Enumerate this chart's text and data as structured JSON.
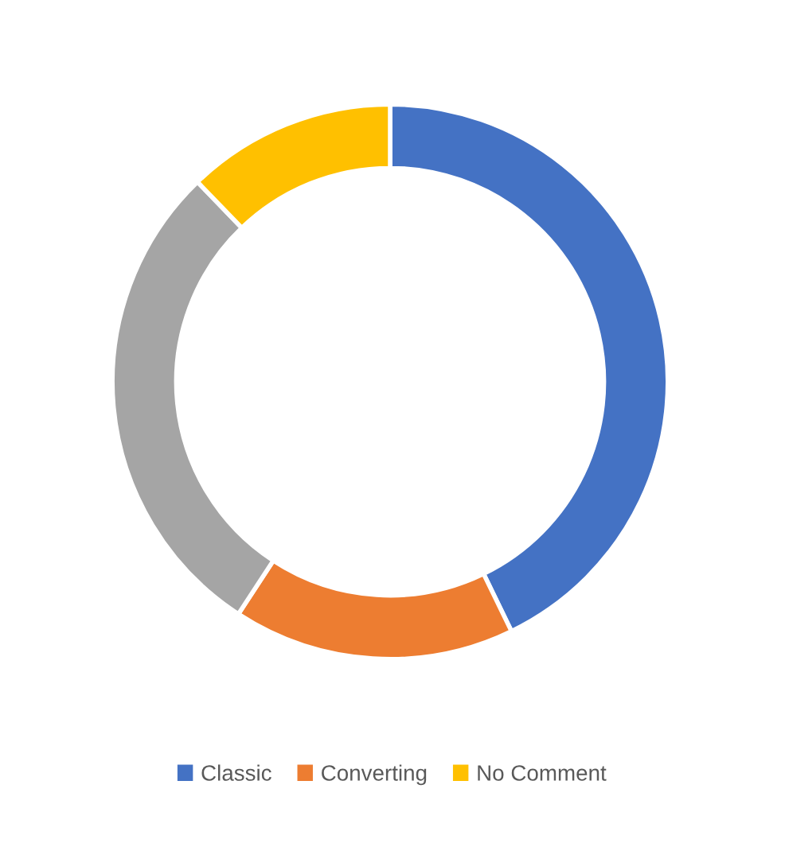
{
  "chart_data": {
    "type": "donut",
    "categories": [
      "Classic",
      "Converting",
      null,
      "No Comment"
    ],
    "values": [
      42.8,
      16.4,
      28.6,
      12.2
    ],
    "colors": [
      "#4472c4",
      "#ed7d31",
      "#a5a5a5",
      "#ffc000"
    ],
    "legend": "bottom"
  }
}
